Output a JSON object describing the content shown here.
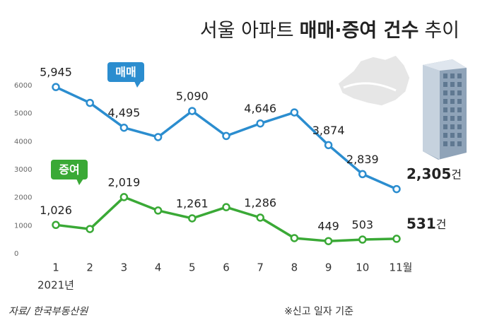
{
  "chart_data": {
    "type": "line",
    "title": [
      "서울 아파트",
      "매매·증여 건수",
      "추이"
    ],
    "categories": [
      "1",
      "2",
      "3",
      "4",
      "5",
      "6",
      "7",
      "8",
      "9",
      "10",
      "11월"
    ],
    "x_sublabel": "2021년",
    "ylim": [
      0,
      6000
    ],
    "yticks": [
      0,
      1000,
      2000,
      3000,
      4000,
      5000,
      6000
    ],
    "grid": false,
    "unit": "건",
    "series": [
      {
        "name": "매매",
        "color": "#2b8dcf",
        "values": [
          5945,
          5380,
          4495,
          4160,
          5090,
          4200,
          4646,
          5040,
          3874,
          2839,
          2305
        ],
        "value_labels": [
          "5,945",
          null,
          "4,495",
          null,
          "5,090",
          null,
          "4,646",
          null,
          "3,874",
          "2,839",
          "2,305"
        ]
      },
      {
        "name": "증여",
        "color": "#3aa936",
        "values": [
          1026,
          880,
          2019,
          1540,
          1261,
          1660,
          1286,
          555,
          449,
          503,
          531
        ],
        "value_labels": [
          "1,026",
          null,
          "2,019",
          null,
          "1,261",
          null,
          "1,286",
          null,
          "449",
          "503",
          "531"
        ]
      }
    ],
    "source": "자료/ 한국부동산원",
    "note": "※신고 일자 기준"
  }
}
